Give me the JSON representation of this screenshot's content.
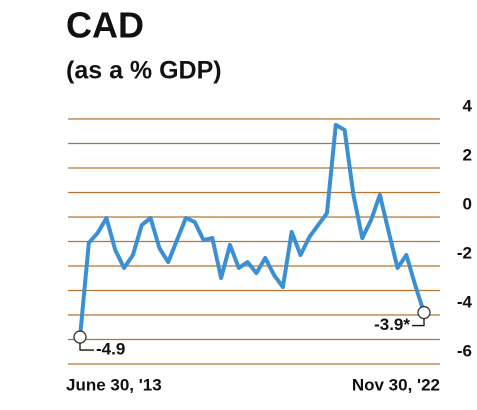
{
  "chart_data": {
    "type": "line",
    "title": "CAD",
    "subtitle": "(as a % GDP)",
    "categories": [
      "June 30, '13",
      null,
      null,
      null,
      null,
      null,
      null,
      null,
      null,
      null,
      null,
      null,
      null,
      null,
      null,
      null,
      null,
      null,
      null,
      null,
      null,
      null,
      null,
      null,
      null,
      null,
      null,
      null,
      null,
      null,
      null,
      null,
      null,
      null,
      null,
      null,
      null,
      null,
      null,
      "Nov 30, '22"
    ],
    "series": [
      {
        "name": "CAD",
        "color": "#3b8fd5",
        "values": [
          -4.9,
          -1.06,
          -0.65,
          -0.04,
          -1.35,
          -2.08,
          -1.55,
          -0.33,
          -0.04,
          -1.27,
          -1.84,
          -0.94,
          -0.04,
          -0.2,
          -0.94,
          -0.86,
          -2.49,
          -1.14,
          -2.08,
          -1.84,
          -2.29,
          -1.67,
          -2.37,
          -2.86,
          -0.61,
          -1.55,
          -0.82,
          -0.33,
          0.16,
          3.76,
          3.55,
          0.9,
          -0.86,
          -0.12,
          0.9,
          -0.61,
          -2.08,
          -1.55,
          -2.78,
          -3.9
        ],
        "value_labels": [
          "-4.9",
          null,
          null,
          null,
          null,
          null,
          null,
          null,
          null,
          null,
          null,
          null,
          null,
          null,
          null,
          null,
          null,
          null,
          null,
          null,
          null,
          null,
          null,
          null,
          null,
          null,
          null,
          null,
          null,
          null,
          null,
          null,
          null,
          null,
          null,
          null,
          null,
          null,
          null,
          "-3.9*"
        ]
      }
    ],
    "ylim": [
      -6,
      4
    ],
    "yticks": [
      -6,
      -4,
      -2,
      0,
      2,
      4
    ],
    "minor_yticks": [
      -5,
      -3,
      -1,
      1,
      3
    ],
    "grid": true,
    "grid_color": "#b8732e",
    "axis_side": "right"
  }
}
